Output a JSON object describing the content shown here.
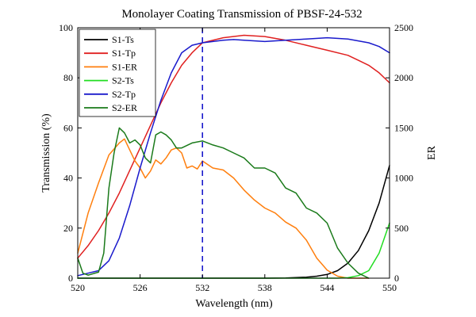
{
  "chart_data": {
    "type": "line",
    "title": "Monolayer Coating Transmission of PBSF-24-532",
    "xlabel": "Wavelength (nm)",
    "ylabel": "Transmission (%)",
    "y2label": "ER",
    "xlim": [
      520,
      550
    ],
    "ylim": [
      0,
      100
    ],
    "y2lim": [
      0,
      2500
    ],
    "x_ticks": [
      520,
      526,
      532,
      538,
      544,
      550
    ],
    "y_ticks": [
      0,
      20,
      40,
      60,
      80,
      100
    ],
    "y2_ticks": [
      0,
      500,
      1000,
      1500,
      2000,
      2500
    ],
    "grid": false,
    "legend_position": "top-left",
    "reference_line": {
      "x": 532,
      "color": "#1a1acc",
      "style": "dashed"
    },
    "series": [
      {
        "name": "S1-Ts",
        "axis": "left",
        "color": "#000000",
        "x": [
          520,
          530,
          538,
          540,
          542,
          543,
          544,
          545,
          546,
          547,
          548,
          549,
          550
        ],
        "y": [
          0,
          0,
          0,
          0.1,
          0.4,
          0.8,
          1.5,
          3,
          6,
          11,
          19,
          30,
          45
        ]
      },
      {
        "name": "S1-Tp",
        "axis": "left",
        "color": "#e02020",
        "x": [
          520,
          521,
          522,
          523,
          524,
          525,
          526,
          527,
          528,
          529,
          530,
          531,
          532,
          534,
          536,
          538,
          540,
          542,
          544,
          546,
          547,
          548,
          549,
          550
        ],
        "y": [
          8,
          13,
          19,
          26,
          34,
          43,
          52,
          61,
          70,
          78,
          85,
          90,
          94,
          96,
          97,
          96.5,
          95,
          93,
          91,
          89,
          87,
          85,
          82,
          78
        ]
      },
      {
        "name": "S1-ER",
        "axis": "right",
        "color": "#ff7f0e",
        "x": [
          520,
          521,
          522,
          523,
          524,
          524.5,
          525,
          525.5,
          526,
          526.5,
          527,
          527.5,
          528,
          528.5,
          529,
          529.5,
          530,
          530.5,
          531,
          531.5,
          532,
          533,
          534,
          535,
          536,
          537,
          538,
          539,
          540,
          541,
          542,
          543,
          544,
          545,
          546,
          547,
          548
        ],
        "y": [
          250,
          650,
          950,
          1230,
          1350,
          1390,
          1280,
          1170,
          1100,
          1000,
          1070,
          1180,
          1140,
          1200,
          1280,
          1300,
          1250,
          1100,
          1120,
          1090,
          1170,
          1100,
          1080,
          1000,
          880,
          780,
          700,
          650,
          560,
          500,
          380,
          200,
          80,
          20,
          0,
          0,
          0
        ]
      },
      {
        "name": "S2-Ts",
        "axis": "left",
        "color": "#22dd22",
        "x": [
          520,
          540,
          545,
          546,
          547,
          548,
          549,
          550
        ],
        "y": [
          0,
          0,
          0,
          0.2,
          1,
          3,
          10,
          22
        ]
      },
      {
        "name": "S2-Tp",
        "axis": "left",
        "color": "#1a1acc",
        "x": [
          520,
          521,
          522,
          523,
          524,
          525,
          526,
          527,
          528,
          529,
          530,
          531,
          532,
          533,
          534,
          535,
          536,
          538,
          540,
          542,
          544,
          546,
          548,
          549,
          550
        ],
        "y": [
          1,
          2,
          3,
          7,
          16,
          29,
          44,
          58,
          71,
          82,
          90,
          93,
          94,
          94.5,
          95,
          95.3,
          95,
          94.5,
          95,
          95.5,
          96,
          95.5,
          94,
          92.5,
          90
        ]
      },
      {
        "name": "S2-ER",
        "axis": "right",
        "color": "#1a7a1a",
        "x": [
          520,
          520.5,
          521,
          522,
          522.5,
          523,
          523.5,
          524,
          524.5,
          525,
          525.5,
          526,
          526.5,
          527,
          527.5,
          528,
          528.5,
          529,
          529.5,
          530,
          531,
          532,
          533,
          534,
          535,
          536,
          537,
          538,
          539,
          540,
          541,
          542,
          543,
          544,
          545,
          546,
          547,
          548
        ],
        "y": [
          200,
          50,
          30,
          60,
          250,
          900,
          1250,
          1500,
          1450,
          1350,
          1380,
          1330,
          1200,
          1150,
          1430,
          1460,
          1430,
          1380,
          1300,
          1300,
          1350,
          1370,
          1330,
          1300,
          1250,
          1200,
          1100,
          1100,
          1050,
          900,
          850,
          700,
          650,
          550,
          300,
          150,
          50,
          0
        ]
      }
    ]
  }
}
